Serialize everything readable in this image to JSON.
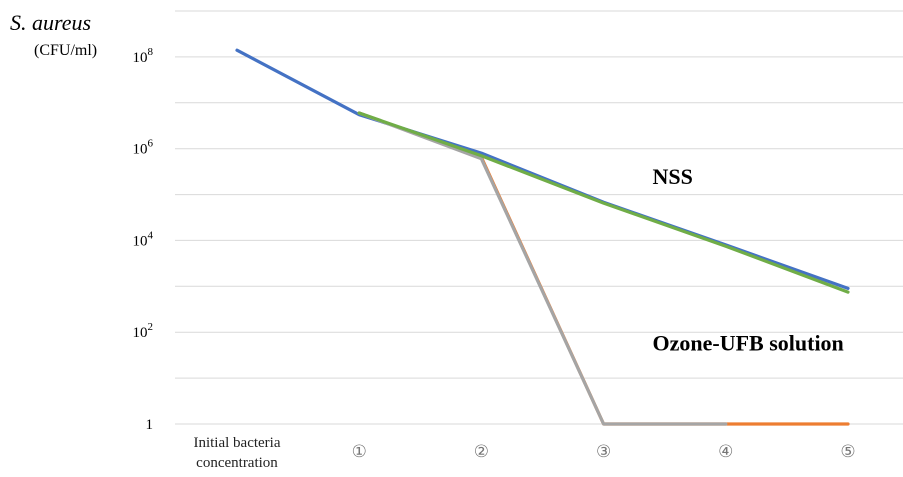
{
  "chart_data": {
    "type": "line",
    "y_title_organism": "S. aureus",
    "y_unit": "(CFU/ml)",
    "yscale": "log10",
    "ylim": [
      1,
      1000000000
    ],
    "y_ticks": [
      {
        "value": 1,
        "base": "1",
        "exp": ""
      },
      {
        "value": 100,
        "base": "10",
        "exp": "2"
      },
      {
        "value": 10000,
        "base": "10",
        "exp": "4"
      },
      {
        "value": 1000000,
        "base": "10",
        "exp": "6"
      },
      {
        "value": 100000000,
        "base": "10",
        "exp": "8"
      }
    ],
    "categories": [
      [
        "Initial bacteria",
        "concentration"
      ],
      [
        "①"
      ],
      [
        "②"
      ],
      [
        "③"
      ],
      [
        "④"
      ],
      [
        "⑤"
      ]
    ],
    "grid": true,
    "series": [
      {
        "color": "#4472C4",
        "points": [
          [
            0,
            140000000
          ],
          [
            1,
            5500000
          ],
          [
            2,
            800000
          ],
          [
            3,
            68000
          ],
          [
            4,
            8000
          ],
          [
            5,
            900
          ]
        ]
      },
      {
        "color": "#ED7D31",
        "points": [
          [
            1,
            6000000
          ],
          [
            2,
            650000
          ],
          [
            3,
            1
          ],
          [
            4,
            1
          ],
          [
            5,
            1
          ]
        ]
      },
      {
        "color": "#A5A5A5",
        "points": [
          [
            1,
            6000000
          ],
          [
            2,
            600000
          ],
          [
            3,
            1
          ],
          [
            4,
            1
          ]
        ]
      },
      {
        "color": "#70AD47",
        "points": [
          [
            1,
            6000000
          ],
          [
            2,
            700000
          ],
          [
            3,
            65000
          ],
          [
            4,
            7500
          ],
          [
            5,
            750
          ]
        ]
      }
    ],
    "annotations": [
      {
        "text": "NSS",
        "x": 3.4,
        "y": 170000
      },
      {
        "text": "Ozone-UFB solution",
        "x": 3.4,
        "y": 40
      }
    ]
  }
}
